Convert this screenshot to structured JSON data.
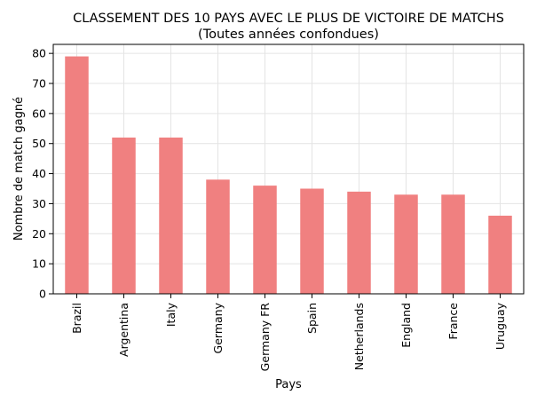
{
  "chart_data": {
    "type": "bar",
    "title": "CLASSEMENT DES 10 PAYS AVEC LE PLUS DE VICTOIRE DE MATCHS",
    "subtitle": "(Toutes années confondues)",
    "xlabel": "Pays",
    "ylabel": "Nombre de match gagné",
    "categories": [
      "Brazil",
      "Argentina",
      "Italy",
      "Germany",
      "Germany FR",
      "Spain",
      "Netherlands",
      "England",
      "France",
      "Uruguay"
    ],
    "values": [
      79,
      52,
      52,
      38,
      36,
      35,
      34,
      33,
      33,
      26
    ],
    "ylim": [
      0,
      83
    ],
    "yticks": [
      0,
      10,
      20,
      30,
      40,
      50,
      60,
      70,
      80
    ],
    "grid": true,
    "bar_color": "#f08080"
  }
}
